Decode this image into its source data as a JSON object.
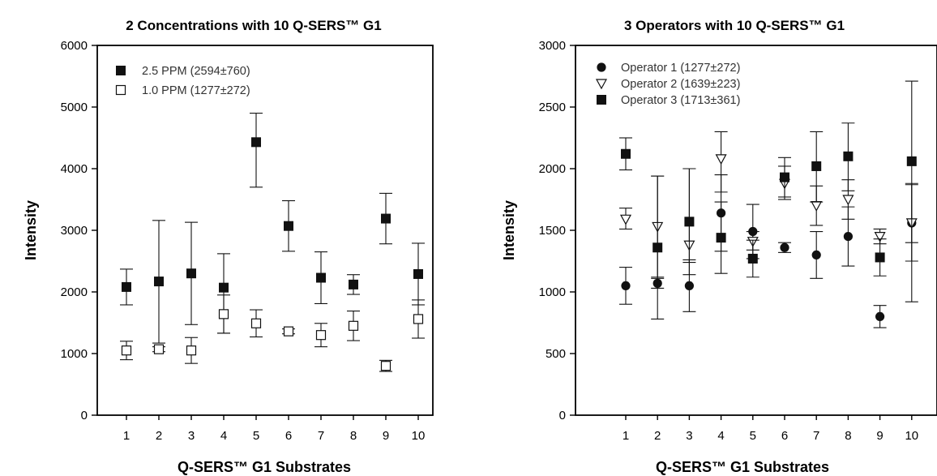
{
  "chart_data": [
    {
      "type": "scatter",
      "title": "2 Concentrations with 10 Q-SERS™ G1",
      "xlabel": "Q-SERS™ G1 Substrates",
      "ylabel": "Intensity",
      "categories": [
        "1",
        "2",
        "3",
        "4",
        "5",
        "6",
        "7",
        "8",
        "9",
        "10"
      ],
      "ylim": [
        0,
        6000
      ],
      "yticks": [
        "0",
        "1000",
        "2000",
        "3000",
        "4000",
        "5000",
        "6000"
      ],
      "legend_position": "top-left",
      "series": [
        {
          "name": "2.5 PPM (2594±760)",
          "marker": "filled-square",
          "values": [
            2080,
            2170,
            2300,
            2070,
            4430,
            3070,
            2230,
            2120,
            3190,
            2290
          ],
          "error_low": [
            1790,
            1170,
            1470,
            1330,
            3700,
            2660,
            1810,
            1960,
            2780,
            1790
          ],
          "error_high": [
            2370,
            3160,
            3130,
            2620,
            4900,
            3480,
            2650,
            2280,
            3600,
            2790
          ]
        },
        {
          "name": "1.0 PPM (1277±272)",
          "marker": "open-square",
          "values": [
            1050,
            1070,
            1050,
            1640,
            1490,
            1360,
            1300,
            1450,
            800,
            1560
          ],
          "error_low": [
            900,
            1030,
            840,
            1330,
            1270,
            1320,
            1110,
            1210,
            710,
            1250
          ],
          "error_high": [
            1200,
            1110,
            1260,
            1950,
            1710,
            1400,
            1490,
            1690,
            890,
            1870
          ]
        }
      ]
    },
    {
      "type": "scatter",
      "title": "3 Operators with 10 Q-SERS™ G1",
      "xlabel": "Q-SERS™ G1 Substrates",
      "ylabel": "Intensity",
      "categories": [
        "1",
        "2",
        "3",
        "4",
        "5",
        "6",
        "7",
        "8",
        "9",
        "10"
      ],
      "ylim": [
        0,
        3000
      ],
      "yticks": [
        "0",
        "500",
        "1000",
        "1500",
        "2000",
        "2500",
        "3000"
      ],
      "legend_position": "top-left",
      "series": [
        {
          "name": "Operator 1 (1277±272)",
          "marker": "filled-circle",
          "values": [
            1050,
            1070,
            1050,
            1640,
            1490,
            1360,
            1300,
            1450,
            800,
            1560
          ],
          "error_low": [
            900,
            1030,
            840,
            1330,
            1270,
            1320,
            1110,
            1210,
            710,
            1250
          ],
          "error_high": [
            1200,
            1110,
            1260,
            1950,
            1710,
            1400,
            1490,
            1690,
            890,
            1870
          ]
        },
        {
          "name": "Operator 2 (1639±223)",
          "marker": "open-triangle-down",
          "values": [
            1590,
            1530,
            1380,
            2080,
            1410,
            1880,
            1700,
            1750,
            1450,
            1560
          ],
          "error_low": [
            1510,
            1120,
            1240,
            1810,
            1340,
            1750,
            1540,
            1590,
            1390,
            1400
          ],
          "error_high": [
            1680,
            1940,
            2000,
            2300,
            1490,
            2020,
            1860,
            1910,
            1510,
            1880
          ]
        },
        {
          "name": "Operator 3 (1713±361)",
          "marker": "filled-square",
          "values": [
            2120,
            1360,
            1570,
            1440,
            1270,
            1930,
            2020,
            2100,
            1280,
            2060
          ],
          "error_low": [
            1990,
            780,
            1140,
            1150,
            1120,
            1770,
            1730,
            1820,
            1130,
            920
          ],
          "error_high": [
            2250,
            1940,
            2000,
            1730,
            1420,
            2090,
            2300,
            2370,
            1430,
            2710
          ]
        }
      ]
    }
  ]
}
